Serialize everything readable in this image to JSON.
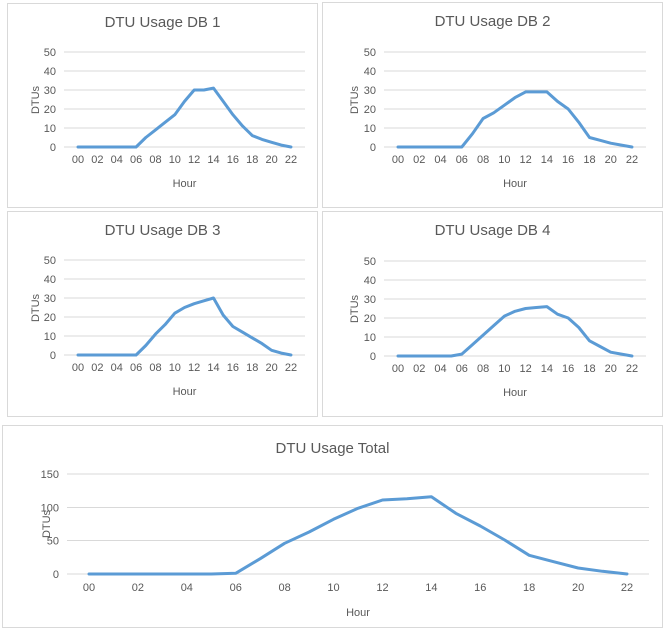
{
  "colors": {
    "line": "#5B9BD5",
    "gridline": "#D9D9D9",
    "panel_border": "#D9D9D9",
    "text": "#595959",
    "background": "#FFFFFF"
  },
  "chart_data": [
    {
      "type": "line",
      "title": "DTU Usage DB 1",
      "xlabel": "Hour",
      "ylabel": "DTUs",
      "ylim": [
        0,
        50
      ],
      "y_ticks": [
        0,
        10,
        20,
        30,
        40,
        50
      ],
      "x_hours": [
        0,
        1,
        2,
        3,
        4,
        5,
        6,
        7,
        8,
        9,
        10,
        11,
        12,
        13,
        14,
        15,
        16,
        17,
        18,
        19,
        20,
        21,
        22
      ],
      "x_tick_labels": [
        "00",
        "02",
        "04",
        "06",
        "08",
        "10",
        "12",
        "14",
        "16",
        "18",
        "20",
        "22"
      ],
      "values": [
        0,
        0,
        0,
        0,
        0,
        0,
        0,
        5,
        9,
        13,
        17,
        24,
        30,
        30,
        31,
        24,
        17,
        11,
        6,
        4,
        2.5,
        1,
        0
      ],
      "grid": true,
      "legend": "none"
    },
    {
      "type": "line",
      "title": "DTU Usage DB 2",
      "xlabel": "Hour",
      "ylabel": "DTUs",
      "ylim": [
        0,
        50
      ],
      "y_ticks": [
        0,
        10,
        20,
        30,
        40,
        50
      ],
      "x_hours": [
        0,
        1,
        2,
        3,
        4,
        5,
        6,
        7,
        8,
        9,
        10,
        11,
        12,
        13,
        14,
        15,
        16,
        17,
        18,
        19,
        20,
        21,
        22
      ],
      "x_tick_labels": [
        "00",
        "02",
        "04",
        "06",
        "08",
        "10",
        "12",
        "14",
        "16",
        "18",
        "20",
        "22"
      ],
      "values": [
        0,
        0,
        0,
        0,
        0,
        0,
        0,
        7,
        15,
        18,
        22,
        26,
        29,
        29,
        29,
        24,
        20,
        13,
        5,
        3.5,
        2,
        1,
        0
      ],
      "grid": true,
      "legend": "none"
    },
    {
      "type": "line",
      "title": "DTU Usage DB 3",
      "xlabel": "Hour",
      "ylabel": "DTUs",
      "ylim": [
        0,
        50
      ],
      "y_ticks": [
        0,
        10,
        20,
        30,
        40,
        50
      ],
      "x_hours": [
        0,
        1,
        2,
        3,
        4,
        5,
        6,
        7,
        8,
        9,
        10,
        11,
        12,
        13,
        14,
        15,
        16,
        17,
        18,
        19,
        20,
        21,
        22
      ],
      "x_tick_labels": [
        "00",
        "02",
        "04",
        "06",
        "08",
        "10",
        "12",
        "14",
        "16",
        "18",
        "20",
        "22"
      ],
      "values": [
        0,
        0,
        0,
        0,
        0,
        0,
        0,
        5,
        11,
        16,
        22,
        25,
        27,
        28.5,
        30,
        21,
        15,
        12,
        9,
        6,
        2.5,
        1,
        0
      ],
      "grid": true,
      "legend": "none"
    },
    {
      "type": "line",
      "title": "DTU Usage DB 4",
      "xlabel": "Hour",
      "ylabel": "DTUs",
      "ylim": [
        0,
        50
      ],
      "y_ticks": [
        0,
        10,
        20,
        30,
        40,
        50
      ],
      "x_hours": [
        0,
        1,
        2,
        3,
        4,
        5,
        6,
        7,
        8,
        9,
        10,
        11,
        12,
        13,
        14,
        15,
        16,
        17,
        18,
        19,
        20,
        21,
        22
      ],
      "x_tick_labels": [
        "00",
        "02",
        "04",
        "06",
        "08",
        "10",
        "12",
        "14",
        "16",
        "18",
        "20",
        "22"
      ],
      "values": [
        0,
        0,
        0,
        0,
        0,
        0,
        1,
        6,
        11,
        16,
        21,
        23.5,
        25,
        25.5,
        26,
        22,
        20,
        15,
        8,
        5,
        2,
        1,
        0
      ],
      "grid": true,
      "legend": "none"
    },
    {
      "type": "line",
      "title": "DTU Usage Total",
      "xlabel": "Hour",
      "ylabel": "DTUs",
      "ylim": [
        0,
        150
      ],
      "y_ticks": [
        0,
        50,
        100,
        150
      ],
      "x_hours": [
        0,
        1,
        2,
        3,
        4,
        5,
        6,
        7,
        8,
        9,
        10,
        11,
        12,
        13,
        14,
        15,
        16,
        17,
        18,
        19,
        20,
        21,
        22
      ],
      "x_tick_labels": [
        "00",
        "02",
        "04",
        "06",
        "08",
        "10",
        "12",
        "14",
        "16",
        "18",
        "20",
        "22"
      ],
      "values": [
        0,
        0,
        0,
        0,
        0,
        0,
        1,
        23,
        46,
        63,
        82,
        98.5,
        111,
        113,
        116,
        91,
        72,
        51,
        28,
        18.5,
        9,
        4,
        0
      ],
      "grid": true,
      "legend": "none"
    }
  ]
}
